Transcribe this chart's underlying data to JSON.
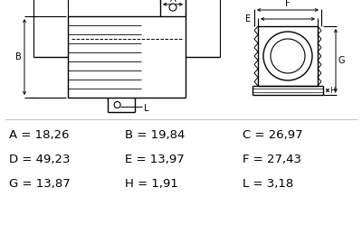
{
  "dim_rows": [
    [
      [
        "A",
        "18,26"
      ],
      [
        "B",
        "19,84"
      ],
      [
        "C",
        "26,97"
      ]
    ],
    [
      [
        "D",
        "49,23"
      ],
      [
        "E",
        "13,97"
      ],
      [
        "F",
        "27,43"
      ]
    ],
    [
      [
        "G",
        "13,87"
      ],
      [
        "H",
        "1,91"
      ],
      [
        "L",
        "3,18"
      ]
    ]
  ],
  "line_color": "#000000",
  "bg_color": "#ffffff",
  "text_color": "#000000",
  "dim_fontsize": 9.5
}
